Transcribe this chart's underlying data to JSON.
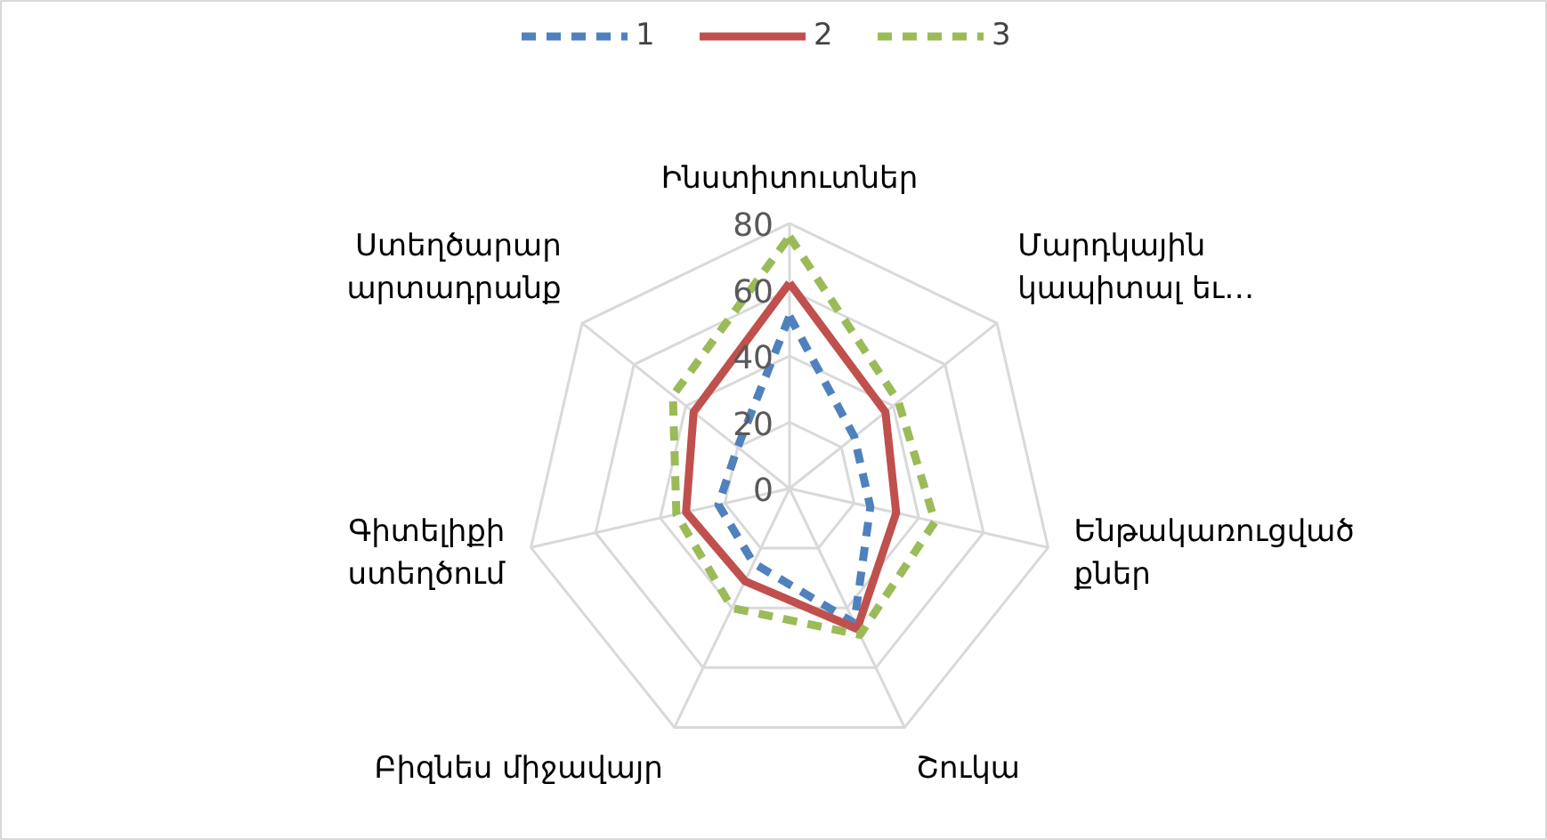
{
  "chart_data": {
    "type": "radar",
    "categories": [
      "Ինստիտուտներ",
      "Մարդկային\nկապիտալ եւ…",
      "Ենթակառուցված\nքներ",
      "Շուկա",
      "Բիզնես միջավայր",
      "Գիտելիքի\nստեղծում",
      "Ստեղծարար\nարտադրանք"
    ],
    "series": [
      {
        "name": "1",
        "color": "#4f81bd",
        "line_style": "dashed",
        "values": [
          52,
          25,
          25,
          45,
          25,
          22,
          20
        ]
      },
      {
        "name": "2",
        "color": "#c0504d",
        "line_style": "solid",
        "values": [
          62,
          37,
          33,
          47,
          31,
          32,
          37
        ]
      },
      {
        "name": "3",
        "color": "#9bbb59",
        "line_style": "dashed",
        "values": [
          76,
          42,
          45,
          49,
          40,
          35,
          45
        ]
      }
    ],
    "ylim": [
      0,
      80
    ],
    "yticks": [
      0,
      20,
      40,
      60,
      80
    ],
    "grid": true,
    "legend": "top",
    "marker": "none"
  }
}
